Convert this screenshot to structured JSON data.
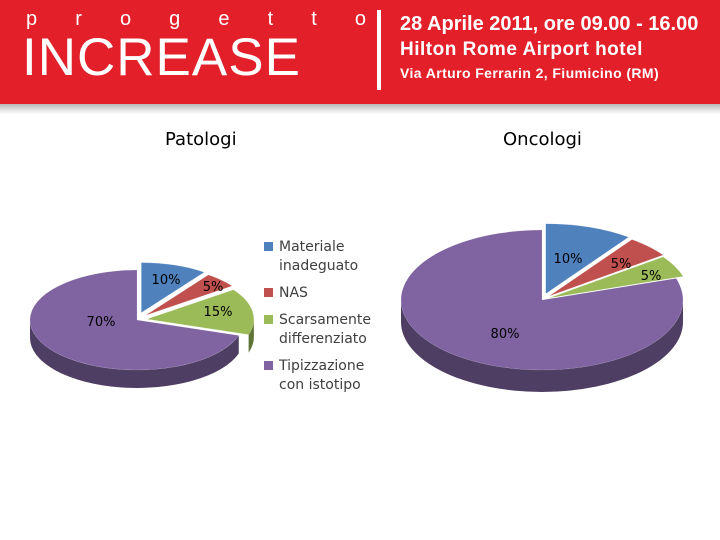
{
  "header": {
    "brand_small": [
      "p",
      "r",
      "o",
      "g",
      "e",
      "t",
      "t",
      "o"
    ],
    "brand_main": "INCREASE",
    "date_line": "28 Aprile 2011, ore 09.00 - 16.00",
    "venue_line": "Hilton Rome Airport hotel",
    "address_line": "Via Arturo Ferrarin 2, Fiumicino (RM)"
  },
  "legend": [
    {
      "label": "Materiale inadeguato",
      "color": "#4f81bd"
    },
    {
      "label": "NAS",
      "color": "#c0504d"
    },
    {
      "label": "Scarsamente differenziato",
      "color": "#9bbb59"
    },
    {
      "label": "Tipizzazione con istotipo",
      "color": "#8064a2"
    }
  ],
  "chart_data": [
    {
      "type": "pie",
      "title": "Patologi",
      "categories": [
        "Materiale inadeguato",
        "NAS",
        "Scarsamente differenziato",
        "Tipizzazione con istotipo"
      ],
      "values": [
        10,
        5,
        15,
        70
      ],
      "data_labels": [
        "10%",
        "5%",
        "15%",
        "70%"
      ],
      "colors": [
        "#4f81bd",
        "#c0504d",
        "#9bbb59",
        "#8064a2"
      ],
      "legend": "right"
    },
    {
      "type": "pie",
      "title": "Oncologi",
      "categories": [
        "Materiale inadeguato",
        "NAS",
        "Scarsamente differenziato",
        "Tipizzazione con istotipo"
      ],
      "values": [
        10,
        5,
        5,
        80
      ],
      "data_labels": [
        "10%",
        "5%",
        "5%",
        "80%"
      ],
      "colors": [
        "#4f81bd",
        "#c0504d",
        "#9bbb59",
        "#8064a2"
      ],
      "legend": "none"
    }
  ]
}
